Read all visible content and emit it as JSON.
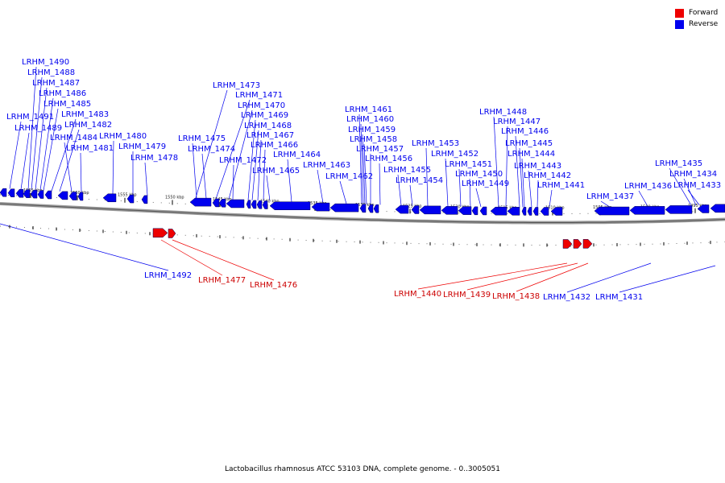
{
  "legend": {
    "forward_label": "Forward",
    "reverse_label": "Reverse",
    "forward_color": "#ee0000",
    "reverse_color": "#0000ee"
  },
  "caption": "Lactobacillus rhamnosus ATCC 53103 DNA, complete genome. - 0..3005051",
  "ticks": [
    "1565 kbp",
    "1560 kbp",
    "1555 kbp",
    "1550 kbp",
    "1545 kbp",
    "1540 kbp",
    "1535 kbp",
    "1530 kbp",
    "1525 kbp",
    "1520 kbp",
    "1515 kbp",
    "1510 kbp",
    "1505 kbp",
    "1500 kbp",
    "1495 kbp"
  ],
  "reverse_genes_top": [
    "LRHM_1490",
    "LRHM_1488",
    "LRHM_1487",
    "LRHM_1486",
    "LRHM_1485",
    "LRHM_1491",
    "LRHM_1483",
    "LRHM_1489",
    "LRHM_1482",
    "LRHM_1484",
    "LRHM_1481",
    "LRHM_1480",
    "LRHM_1479",
    "LRHM_1478",
    "LRHM_1473",
    "LRHM_1471",
    "LRHM_1470",
    "LRHM_1469",
    "LRHM_1468",
    "LRHM_1467",
    "LRHM_1475",
    "LRHM_1466",
    "LRHM_1474",
    "LRHM_1472",
    "LRHM_1465",
    "LRHM_1464",
    "LRHM_1463",
    "LRHM_1462",
    "LRHM_1461",
    "LRHM_1460",
    "LRHM_1459",
    "LRHM_1458",
    "LRHM_1457",
    "LRHM_1456",
    "LRHM_1455",
    "LRHM_1454",
    "LRHM_1453",
    "LRHM_1452",
    "LRHM_1451",
    "LRHM_1450",
    "LRHM_1449",
    "LRHM_1448",
    "LRHM_1447",
    "LRHM_1446",
    "LRHM_1445",
    "LRHM_1444",
    "LRHM_1443",
    "LRHM_1442",
    "LRHM_1441",
    "LRHM_1437",
    "LRHM_1436",
    "LRHM_1435",
    "LRHM_1434",
    "LRHM_1433"
  ],
  "reverse_genes_bottom": [
    "LRHM_1492",
    "LRHM_1432",
    "LRHM_1431"
  ],
  "forward_genes": [
    "LRHM_1477",
    "LRHM_1476",
    "LRHM_1440",
    "LRHM_1439",
    "LRHM_1438"
  ]
}
